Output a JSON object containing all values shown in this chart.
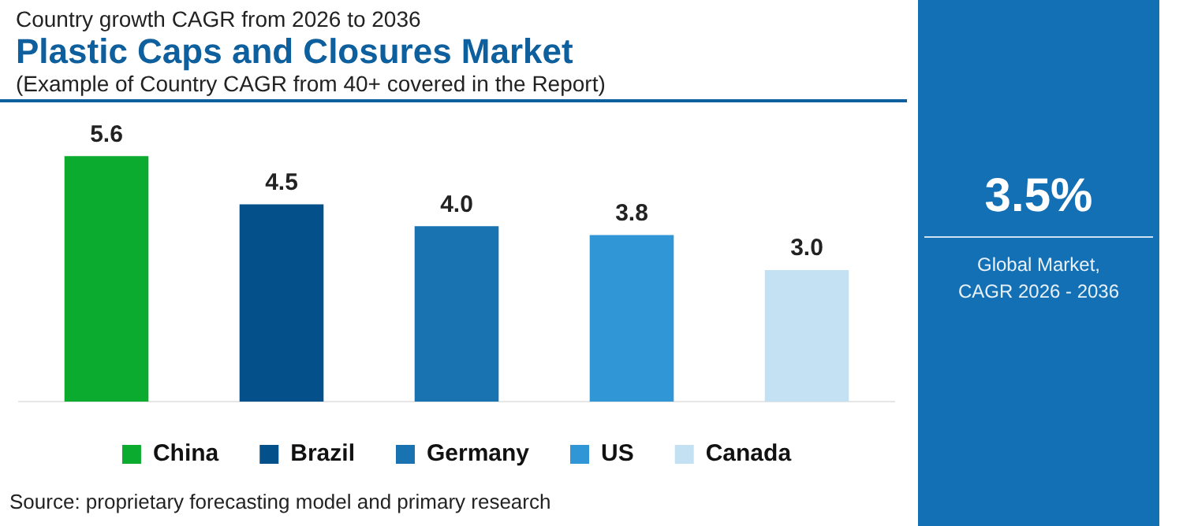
{
  "chart_data": {
    "type": "bar",
    "title": "Plastic Caps and Closures Market",
    "subtitle": "(Example of Country CAGR from 40+ covered in the Report)",
    "annotations": [
      "Country growth CAGR from 2026 to 2036",
      "3.5%",
      "Global Market,\nCAGR 2026 - 2036",
      "Source: proprietary forecasting model and primary research"
    ],
    "categories": [
      null,
      null,
      null,
      null,
      null
    ],
    "series": [
      {
        "name": "China",
        "color": "#0bab2f",
        "values": [
          5.6,
          null,
          null,
          null,
          null
        ],
        "value_labels": [
          "5.6",
          null,
          null,
          null,
          null
        ]
      },
      {
        "name": "Brazil",
        "color": "#03508a",
        "values": [
          null,
          4.5,
          null,
          null,
          null
        ],
        "value_labels": [
          null,
          "4.5",
          null,
          null,
          null
        ]
      },
      {
        "name": "Germany",
        "color": "#1873b0",
        "values": [
          null,
          null,
          4.0,
          null,
          null
        ],
        "value_labels": [
          null,
          null,
          "4.0",
          null,
          null
        ]
      },
      {
        "name": "US",
        "color": "#3196d6",
        "values": [
          null,
          null,
          null,
          3.8,
          null
        ],
        "value_labels": [
          null,
          null,
          null,
          "3.8",
          null
        ]
      },
      {
        "name": "Canada",
        "color": "#c3e1f3",
        "values": [
          null,
          null,
          null,
          null,
          3.0
        ],
        "value_labels": [
          null,
          null,
          null,
          null,
          "3.0"
        ]
      }
    ],
    "stacked": true,
    "grid": false,
    "legend": "bottom"
  }
}
